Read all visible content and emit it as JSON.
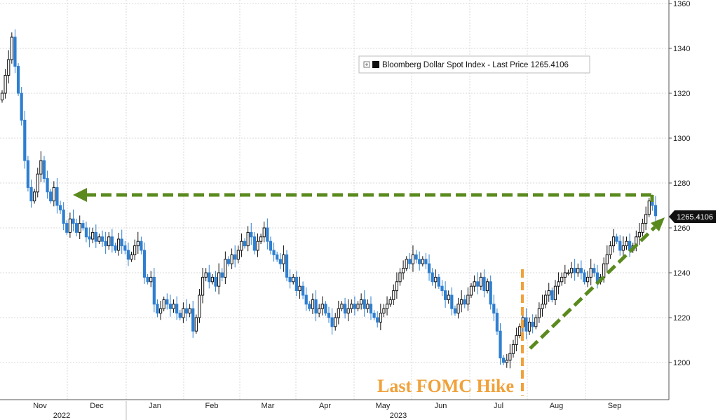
{
  "chart_data": {
    "type": "candlestick",
    "legend": {
      "label": "Bloomberg Dollar Spot Index - Last Price 1265.4106",
      "position": "top-center"
    },
    "last_price_label": "1265.4106",
    "ylim": [
      1185,
      1360
    ],
    "y_ticks": [
      1200,
      1220,
      1240,
      1260,
      1280,
      1300,
      1320,
      1340,
      1360
    ],
    "x_months": [
      "Nov",
      "Dec",
      "Jan",
      "Feb",
      "Mar",
      "Apr",
      "May",
      "Jun",
      "Jul",
      "Aug",
      "Sep"
    ],
    "x_years": [
      "2022",
      "2023"
    ],
    "grid": true,
    "colors": {
      "up": "#111111",
      "down": "#2f7fd0",
      "accent_green": "#5a8a1e",
      "accent_orange": "#f0a13a"
    },
    "closes": [
      1320,
      1328,
      1335,
      1345,
      1332,
      1320,
      1308,
      1290,
      1278,
      1272,
      1276,
      1284,
      1290,
      1282,
      1276,
      1272,
      1278,
      1270,
      1268,
      1262,
      1258,
      1264,
      1262,
      1258,
      1262,
      1260,
      1256,
      1255,
      1258,
      1254,
      1256,
      1254,
      1252,
      1256,
      1252,
      1250,
      1255,
      1252,
      1250,
      1246,
      1248,
      1252,
      1254,
      1250,
      1238,
      1236,
      1238,
      1226,
      1222,
      1224,
      1228,
      1226,
      1224,
      1226,
      1222,
      1220,
      1224,
      1222,
      1224,
      1214,
      1220,
      1230,
      1238,
      1240,
      1236,
      1238,
      1234,
      1240,
      1238,
      1246,
      1244,
      1248,
      1246,
      1250,
      1254,
      1252,
      1258,
      1256,
      1250,
      1254,
      1256,
      1260,
      1254,
      1250,
      1248,
      1246,
      1244,
      1248,
      1238,
      1236,
      1238,
      1232,
      1234,
      1230,
      1226,
      1224,
      1228,
      1222,
      1224,
      1226,
      1222,
      1220,
      1216,
      1220,
      1224,
      1226,
      1222,
      1224,
      1226,
      1224,
      1226,
      1228,
      1224,
      1226,
      1222,
      1220,
      1218,
      1222,
      1224,
      1226,
      1228,
      1232,
      1236,
      1240,
      1242,
      1246,
      1244,
      1248,
      1246,
      1244,
      1246,
      1244,
      1240,
      1236,
      1238,
      1234,
      1232,
      1228,
      1230,
      1224,
      1222,
      1226,
      1228,
      1226,
      1230,
      1234,
      1236,
      1234,
      1238,
      1232,
      1236,
      1226,
      1222,
      1214,
      1202,
      1200,
      1201,
      1204,
      1208,
      1212,
      1216,
      1220,
      1214,
      1218,
      1216,
      1220,
      1224,
      1226,
      1230,
      1232,
      1228,
      1234,
      1236,
      1238,
      1240,
      1240,
      1242,
      1240,
      1242,
      1240,
      1236,
      1238,
      1242,
      1240,
      1236,
      1238,
      1244,
      1248,
      1252,
      1256,
      1254,
      1250,
      1252,
      1254,
      1250,
      1252,
      1256,
      1258,
      1262,
      1266,
      1272,
      1270,
      1265.4
    ]
  },
  "annotations": {
    "fomc_label": "Last FOMC Hike"
  }
}
